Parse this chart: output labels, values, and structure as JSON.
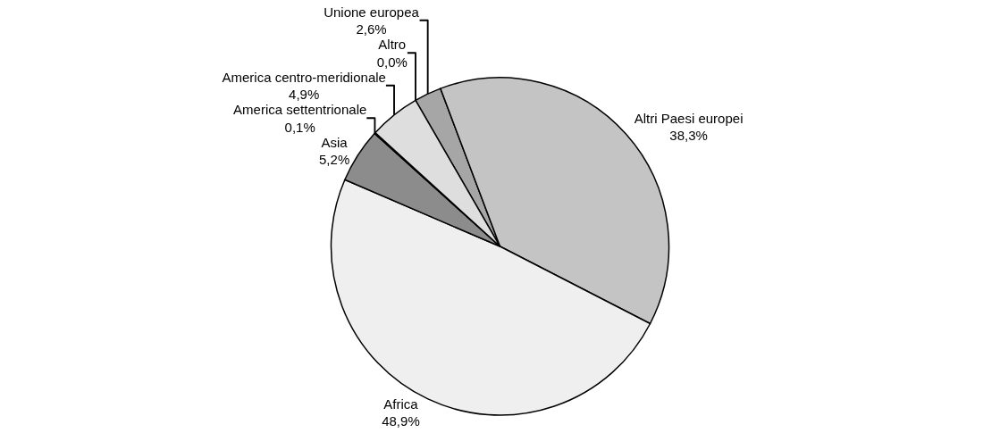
{
  "chart_data": {
    "type": "pie",
    "categories": [
      "Unione europea",
      "Altri Paesi europei",
      "Africa",
      "Asia",
      "America settentrionale",
      "America centro-meridionale",
      "Altro"
    ],
    "values": [
      2.6,
      38.3,
      48.9,
      5.2,
      0.1,
      4.9,
      0.0
    ],
    "value_labels": [
      "2,6%",
      "38,3%",
      "48,9%",
      "5,2%",
      "0,1%",
      "4,9%",
      "0,0%"
    ],
    "colors": [
      "#a6a6a6",
      "#c4c4c4",
      "#efefef",
      "#8c8c8c",
      "#ffffff",
      "#dedede",
      "#ffffff"
    ],
    "legend": false
  }
}
